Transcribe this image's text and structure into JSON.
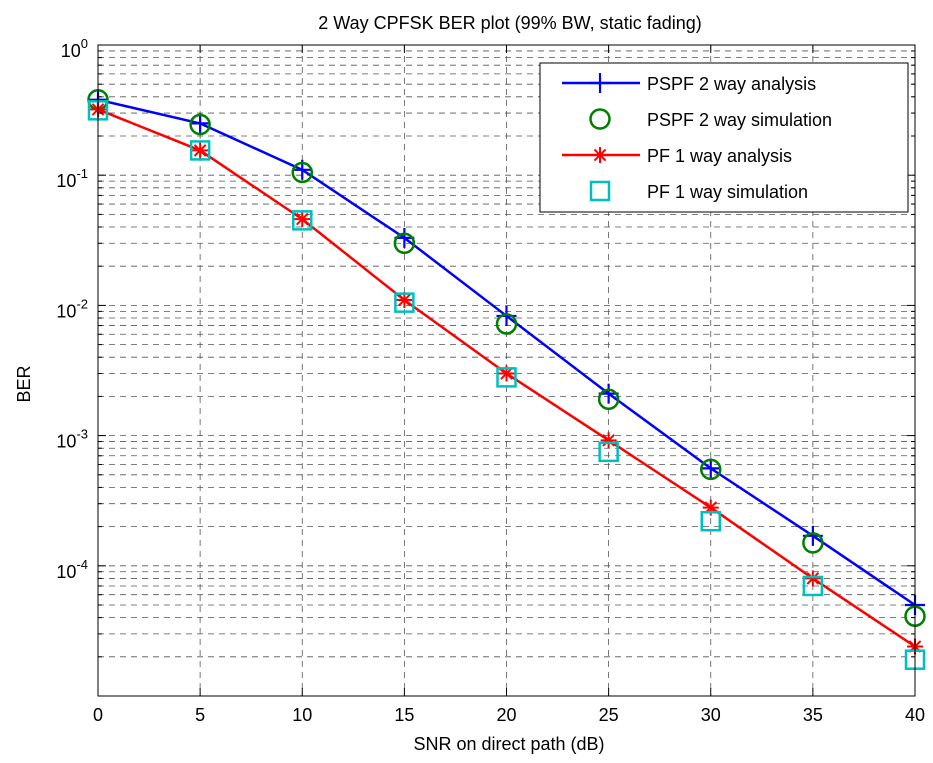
{
  "chart_data": {
    "type": "line",
    "title": "2 Way CPFSK BER plot (99% BW, static fading)",
    "xlabel": "SNR on direct path (dB)",
    "ylabel": "BER",
    "xlim": [
      0,
      40
    ],
    "ylim": [
      1e-05,
      1
    ],
    "yscale": "log",
    "grid": true,
    "legend_position": "top-right",
    "x_ticks": [
      0,
      5,
      10,
      15,
      20,
      25,
      30,
      35,
      40
    ],
    "x_tick_labels": [
      "0",
      "5",
      "10",
      "15",
      "20",
      "25",
      "30",
      "35",
      "40"
    ],
    "y_ticks": [
      {
        "base": "10",
        "exp": "0",
        "value": 1
      },
      {
        "base": "10",
        "exp": "-1",
        "value": 0.1
      },
      {
        "base": "10",
        "exp": "-2",
        "value": 0.01
      },
      {
        "base": "10",
        "exp": "-3",
        "value": 0.001
      },
      {
        "base": "10",
        "exp": "-4",
        "value": 0.0001
      }
    ],
    "x": [
      0,
      5,
      10,
      15,
      20,
      25,
      30,
      35,
      40
    ],
    "series": [
      {
        "name": "PSPF 2 way analysis",
        "color": "#0000ff",
        "line": true,
        "marker": "plus",
        "values": [
          0.38,
          0.25,
          0.11,
          0.033,
          0.0083,
          0.0021,
          0.00056,
          0.00017,
          5e-05
        ]
      },
      {
        "name": "PSPF 2 way simulation",
        "color": "#007f00",
        "line": false,
        "marker": "circle",
        "values": [
          0.38,
          0.245,
          0.105,
          0.03,
          0.0072,
          0.0019,
          0.00055,
          0.00015,
          4.1e-05
        ]
      },
      {
        "name": "PF 1 way analysis",
        "color": "#ff0000",
        "line": true,
        "marker": "star",
        "values": [
          0.32,
          0.155,
          0.046,
          0.011,
          0.003,
          0.00092,
          0.00028,
          8e-05,
          2.4e-05
        ]
      },
      {
        "name": "PF 1 way simulation",
        "color": "#00bfbf",
        "line": false,
        "marker": "square",
        "values": [
          0.315,
          0.155,
          0.045,
          0.0105,
          0.0028,
          0.00075,
          0.00022,
          7e-05,
          1.9e-05
        ]
      }
    ]
  }
}
